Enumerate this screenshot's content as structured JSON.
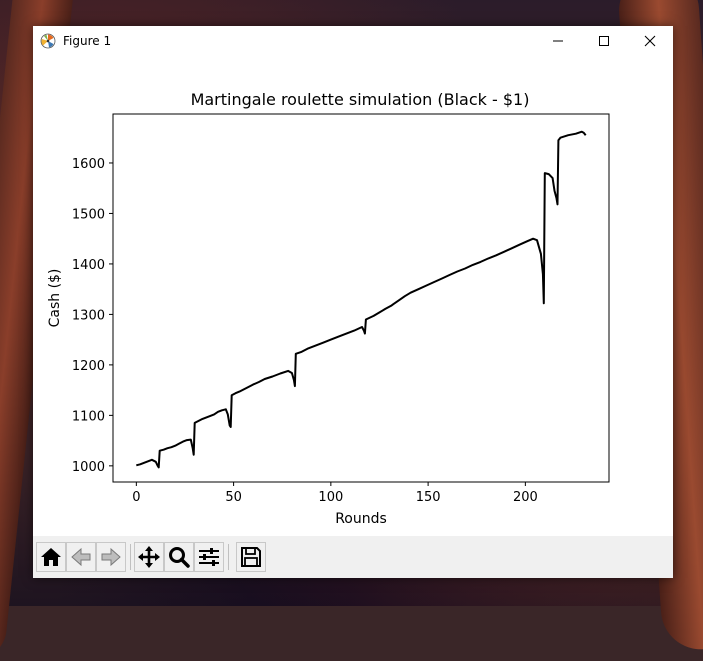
{
  "window": {
    "title": "Figure 1",
    "controls": {
      "minimize": "minimize",
      "maximize": "maximize",
      "close": "close"
    }
  },
  "toolbar": {
    "buttons": [
      {
        "name": "home",
        "icon": "home-icon"
      },
      {
        "name": "back",
        "icon": "arrow-left-icon"
      },
      {
        "name": "forward",
        "icon": "arrow-right-icon"
      },
      {
        "name": "pan",
        "icon": "move-icon"
      },
      {
        "name": "zoom",
        "icon": "magnifier-icon"
      },
      {
        "name": "configure-subplots",
        "icon": "sliders-icon"
      },
      {
        "name": "save",
        "icon": "floppy-disk-icon"
      }
    ]
  },
  "chart_data": {
    "type": "line",
    "title": "Martingale roulette simulation (Black - $1)",
    "xlabel": "Rounds",
    "ylabel": "Cash ($)",
    "xlim": [
      -12,
      243
    ],
    "ylim": [
      968,
      1697
    ],
    "xticks": [
      0,
      50,
      100,
      150,
      200
    ],
    "yticks": [
      1000,
      1100,
      1200,
      1300,
      1400,
      1500,
      1600
    ],
    "grid": false,
    "line_color": "#000000",
    "series": [
      {
        "x": [
          0,
          2,
          4,
          6,
          8,
          10,
          11,
          11.5,
          12,
          14,
          16,
          18,
          20,
          22,
          24,
          26,
          28,
          29,
          29.5,
          30,
          32,
          34,
          36,
          38,
          40,
          42,
          44,
          46,
          47,
          48,
          48.5,
          49,
          51,
          53,
          55,
          57,
          60,
          63,
          66,
          70,
          74,
          78,
          80,
          81,
          81.5,
          82,
          85,
          88,
          92,
          96,
          100,
          104,
          108,
          112,
          116,
          117,
          117.5,
          118,
          122,
          125,
          128,
          131,
          132,
          135,
          138,
          141,
          145,
          149,
          153,
          157,
          161,
          165,
          169,
          173,
          177,
          181,
          185,
          189,
          193,
          197,
          201,
          204,
          206,
          208,
          209,
          209.5,
          210,
          212,
          214,
          215,
          216,
          216.5,
          217,
          218,
          222,
          226,
          229,
          230,
          231
        ],
        "y": [
          1001,
          1003,
          1006,
          1009,
          1012,
          1008,
          1000,
          997,
          1030,
          1032,
          1035,
          1037,
          1040,
          1044,
          1048,
          1051,
          1052,
          1035,
          1022,
          1085,
          1089,
          1093,
          1096,
          1099,
          1102,
          1107,
          1110,
          1112,
          1102,
          1080,
          1077,
          1140,
          1144,
          1147,
          1151,
          1155,
          1161,
          1166,
          1172,
          1177,
          1183,
          1188,
          1184,
          1170,
          1158,
          1222,
          1226,
          1232,
          1238,
          1244,
          1250,
          1256,
          1262,
          1268,
          1275,
          1268,
          1262,
          1290,
          1297,
          1304,
          1311,
          1317,
          1320,
          1328,
          1336,
          1343,
          1350,
          1357,
          1364,
          1371,
          1378,
          1385,
          1391,
          1398,
          1404,
          1411,
          1417,
          1424,
          1431,
          1438,
          1445,
          1450,
          1447,
          1420,
          1380,
          1322,
          1580,
          1578,
          1570,
          1545,
          1530,
          1518,
          1645,
          1650,
          1655,
          1658,
          1662,
          1660,
          1655
        ]
      }
    ]
  }
}
